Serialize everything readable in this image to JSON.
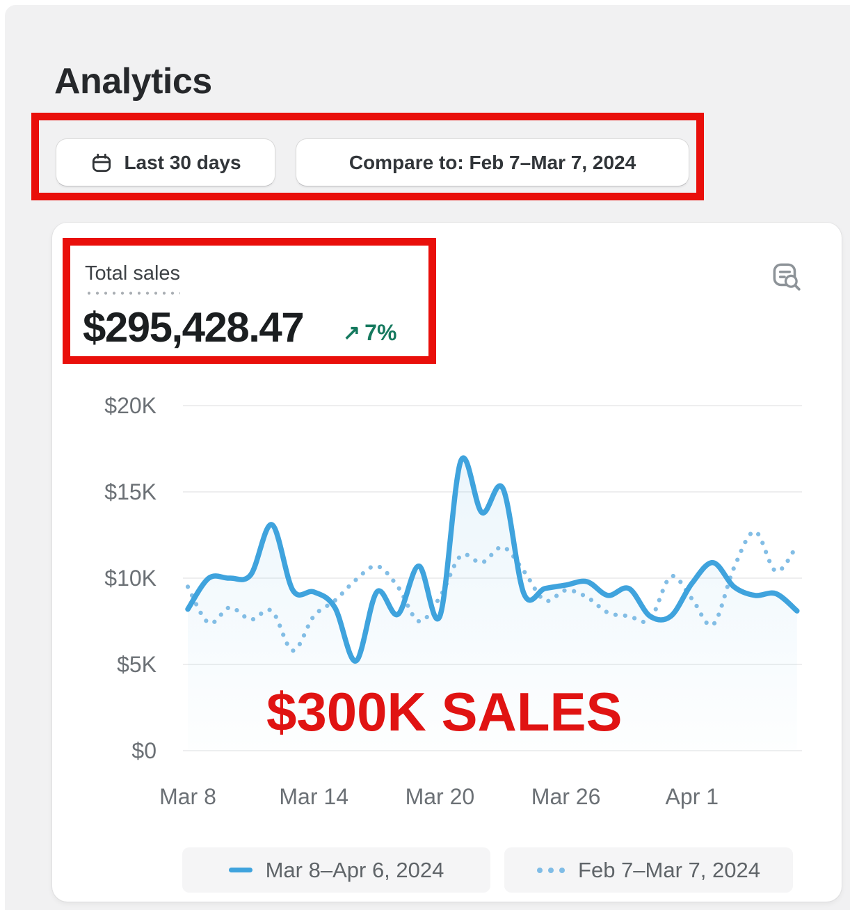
{
  "page": {
    "title": "Analytics"
  },
  "toolbar": {
    "date_range_button": {
      "label": "Last 30 days",
      "icon": "calendar-icon"
    },
    "compare_button": {
      "label": "Compare to: Feb 7–Mar 7, 2024"
    }
  },
  "metric": {
    "label": "Total sales",
    "value": "$295,428.47",
    "delta_arrow": "↗",
    "delta_value": "7%",
    "delta_color": "#15795e"
  },
  "annotations": {
    "overlay_text": "$300K SALES",
    "highlight_color": "#e90f0b",
    "text_color": "#e01312"
  },
  "chart_data": {
    "type": "line",
    "title": "Total sales",
    "ylim": [
      0,
      20000
    ],
    "grid": true,
    "legend_position": "bottom",
    "y_ticks": [
      0,
      5000,
      10000,
      15000,
      20000
    ],
    "y_tick_labels": [
      "$0",
      "$5K",
      "$10K",
      "$15K",
      "$20K"
    ],
    "x_tick_indices": [
      0,
      6,
      12,
      18,
      24
    ],
    "x_tick_labels": [
      "Mar 8",
      "Mar 14",
      "Mar 20",
      "Mar 26",
      "Apr 1"
    ],
    "series": [
      {
        "name": "Mar 8–Apr 6, 2024",
        "style": "solid",
        "color": "#3fa3dd",
        "area_fill": true,
        "values": [
          8200,
          10000,
          10000,
          10200,
          13100,
          9300,
          9200,
          8300,
          5200,
          9200,
          7900,
          10700,
          7800,
          16800,
          13800,
          15200,
          9100,
          9400,
          9600,
          9800,
          9000,
          9400,
          7800,
          7800,
          9700,
          10900,
          9500,
          9000,
          9100,
          8100
        ]
      },
      {
        "name": "Feb 7–Mar 7, 2024",
        "style": "dotted",
        "color": "#82bde5",
        "area_fill": false,
        "values": [
          9500,
          7400,
          8300,
          7600,
          8100,
          5800,
          7800,
          8700,
          9900,
          10700,
          9500,
          7500,
          8900,
          11300,
          10900,
          11800,
          10400,
          8700,
          9300,
          8900,
          8000,
          7800,
          7600,
          10100,
          8800,
          7300,
          10600,
          12700,
          10400,
          11900
        ]
      }
    ]
  }
}
